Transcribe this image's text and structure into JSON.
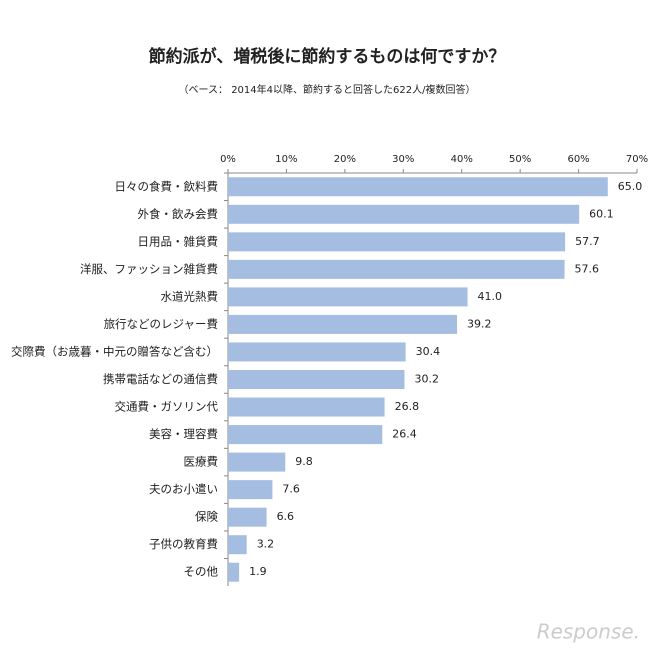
{
  "chart_data": {
    "type": "bar",
    "orientation": "horizontal",
    "title": "節約派が、増税後に節約するものは何ですか？",
    "subtitle": "（ベース： 2014年4以降、節約すると回答した622人/複数回答）",
    "categories": [
      "日々の食費・飲料費",
      "外食・飲み会費",
      "日用品・雑貨費",
      "洋服、ファッション雑貨費",
      "水道光熱費",
      "旅行などのレジャー費",
      "交際費（お歳暮・中元の贈答など含む）",
      "携帯電話などの通信費",
      "交通費・ガソリン代",
      "美容・理容費",
      "医療費",
      "夫のお小遣い",
      "保険",
      "子供の教育費",
      "その他"
    ],
    "values": [
      65.0,
      60.1,
      57.7,
      57.6,
      41.0,
      39.2,
      30.4,
      30.2,
      26.8,
      26.4,
      9.8,
      7.6,
      6.6,
      3.2,
      1.9
    ],
    "value_labels": [
      "65.0",
      "60.1",
      "57.7",
      "57.6",
      "41.0",
      "39.2",
      "30.4",
      "30.2",
      "26.8",
      "26.4",
      "9.8",
      "7.6",
      "6.6",
      "3.2",
      "1.9"
    ],
    "color": "#a4bde1",
    "xlim": [
      0,
      70
    ],
    "xticks": [
      {
        "value": 0,
        "label": "0%"
      },
      {
        "value": 10,
        "label": "10%"
      },
      {
        "value": 20,
        "label": "20%"
      },
      {
        "value": 30,
        "label": "30%"
      },
      {
        "value": 40,
        "label": "40%"
      },
      {
        "value": 50,
        "label": "50%"
      },
      {
        "value": 60,
        "label": "60%"
      },
      {
        "value": 70,
        "label": "70%"
      }
    ],
    "grid": false,
    "watermark": "Response."
  }
}
